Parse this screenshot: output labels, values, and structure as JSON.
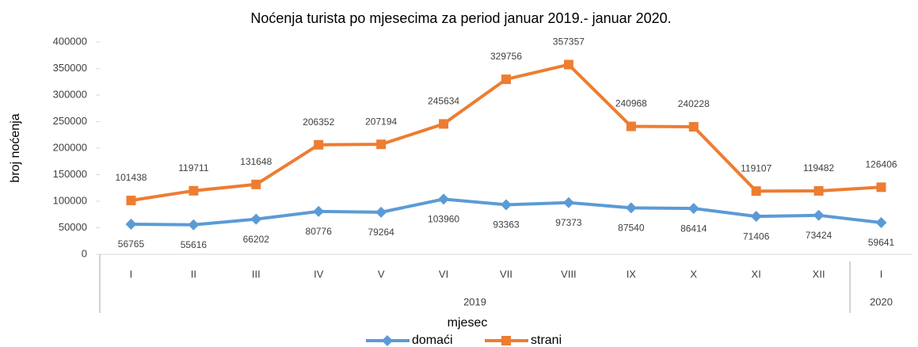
{
  "chart_data": {
    "type": "line",
    "title": "Noćenja turista po mjesecima za period  januar 2019.- januar 2020.",
    "x_label": "mjesec",
    "y_label": "broj noćenja",
    "categories": [
      "I",
      "II",
      "III",
      "IV",
      "V",
      "VI",
      "VII",
      "VIII",
      "IX",
      "X",
      "XI",
      "XII",
      "I"
    ],
    "groups": [
      {
        "name": "2019",
        "count": 12
      },
      {
        "name": "2020",
        "count": 1
      }
    ],
    "series": [
      {
        "name": "domaći",
        "color": "#5b9bd5",
        "marker": "diamond",
        "values": [
          56765,
          55616,
          66202,
          80776,
          79264,
          103960,
          93363,
          97373,
          87540,
          86414,
          71406,
          73424,
          59641
        ]
      },
      {
        "name": "strani",
        "color": "#ed7d31",
        "marker": "square",
        "values": [
          101438,
          119711,
          131648,
          206352,
          207194,
          245634,
          329756,
          357357,
          240968,
          240228,
          119107,
          119482,
          126406
        ]
      }
    ],
    "ylim": [
      0,
      400000
    ],
    "yticks": [
      0,
      50000,
      100000,
      150000,
      200000,
      250000,
      300000,
      350000,
      400000
    ],
    "grid": false,
    "legend": "bottom"
  }
}
